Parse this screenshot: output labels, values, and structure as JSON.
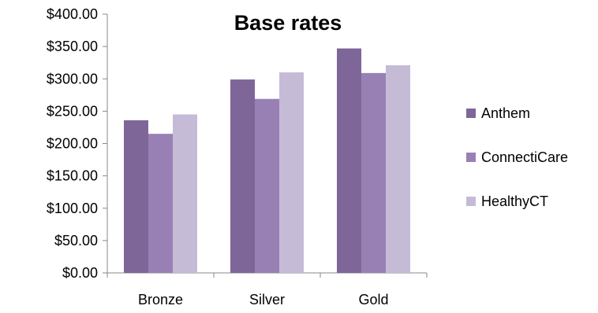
{
  "chart_data": {
    "type": "bar",
    "title": "Base rates",
    "xlabel": "",
    "ylabel": "",
    "categories": [
      "Bronze",
      "Silver",
      "Gold"
    ],
    "series": [
      {
        "name": "Anthem",
        "values": [
          236,
          299,
          347
        ],
        "color": "#7E6699"
      },
      {
        "name": "ConnectiCare",
        "values": [
          215,
          269,
          309
        ],
        "color": "#9880B5"
      },
      {
        "name": "HealthyCT",
        "values": [
          245,
          310,
          321
        ],
        "color": "#C6BBD6"
      }
    ],
    "ylim": [
      0,
      400
    ],
    "yticks": [
      0,
      50,
      100,
      150,
      200,
      250,
      300,
      350,
      400
    ],
    "yticklabels": [
      "$0.00",
      "$50.00",
      "$100.00",
      "$150.00",
      "$200.00",
      "$250.00",
      "$300.00",
      "$350.00",
      "$400.00"
    ],
    "grid": false,
    "legend_position": "right"
  }
}
